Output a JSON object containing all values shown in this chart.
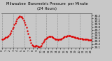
{
  "title": "Milwaukee  Barometric Pressure  per Minute",
  "subtitle": "(24 Hours)",
  "bg_color": "#c8c8c8",
  "plot_bg_color": "#c8c8c8",
  "line_color": "#dd0000",
  "grid_color": "#888888",
  "title_color": "#000000",
  "ylim": [
    29.08,
    30.28
  ],
  "ytick_labels": [
    "29.1",
    "29.2",
    "29.3",
    "29.4",
    "29.5",
    "29.6",
    "29.7",
    "29.8",
    "29.9",
    "30.0",
    "30.1",
    "30.2"
  ],
  "yticks": [
    29.1,
    29.2,
    29.3,
    29.4,
    29.5,
    29.6,
    29.7,
    29.8,
    29.9,
    30.0,
    30.1,
    30.2
  ],
  "y_values": [
    29.38,
    29.37,
    29.4,
    29.42,
    29.45,
    29.44,
    29.46,
    29.5,
    29.55,
    29.6,
    29.67,
    29.73,
    29.8,
    29.88,
    29.95,
    30.02,
    30.08,
    30.13,
    30.16,
    30.18,
    30.17,
    30.15,
    30.1,
    30.03,
    29.96,
    29.88,
    29.8,
    29.68,
    29.56,
    29.44,
    29.34,
    29.24,
    29.18,
    29.14,
    29.12,
    29.13,
    29.15,
    29.14,
    29.12,
    29.11,
    29.1,
    29.12,
    29.16,
    29.22,
    29.28,
    29.33,
    29.37,
    29.4,
    29.43,
    29.45,
    29.47,
    29.48,
    29.48,
    29.46,
    29.44,
    29.42,
    29.4,
    29.38,
    29.37,
    29.36,
    29.35,
    29.36,
    29.37,
    29.38,
    29.4,
    29.42,
    29.44,
    29.46,
    29.47,
    29.48,
    29.49,
    29.5,
    29.5,
    29.49,
    29.48,
    29.47,
    29.46,
    29.45,
    29.44,
    29.43,
    29.42,
    29.41,
    29.4,
    29.4,
    29.39,
    29.39,
    29.38,
    29.38,
    29.37,
    29.37,
    29.36,
    29.36,
    29.35,
    29.35,
    29.35,
    29.35
  ],
  "num_vgrid": 9,
  "marker_size": 1.5,
  "linewidth": 0.5,
  "title_fontsize": 3.8,
  "ytick_fontsize": 3.0,
  "xtick_fontsize": 2.5
}
